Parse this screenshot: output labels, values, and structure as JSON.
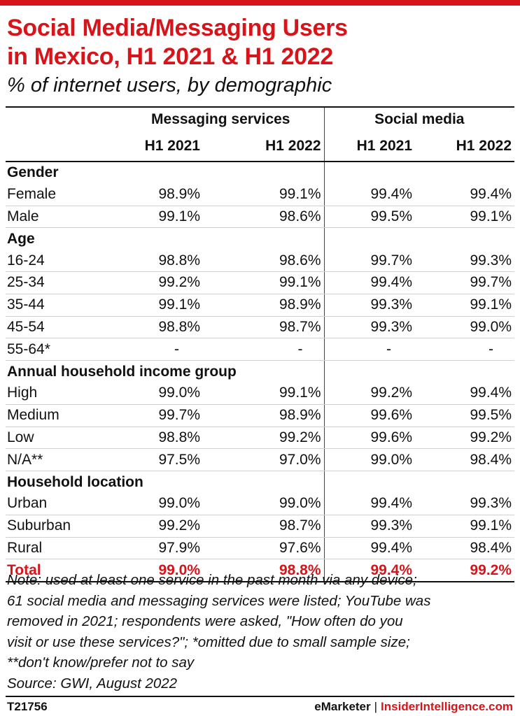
{
  "title_line1": "Social Media/Messaging Users",
  "title_line2": "in Mexico, H1 2021 & H1 2022",
  "subtitle": "% of internet users, by demographic",
  "chart_data": {
    "type": "table",
    "column_groups": [
      "Messaging services",
      "Social media"
    ],
    "periods": [
      "H1 2021",
      "H1 2022",
      "H1 2021",
      "H1 2022"
    ],
    "rows": [
      {
        "kind": "section",
        "label": "Gender"
      },
      {
        "kind": "row",
        "label": "Female",
        "values": [
          "98.9%",
          "99.1%",
          "99.4%",
          "99.4%"
        ]
      },
      {
        "kind": "row",
        "label": "Male",
        "values": [
          "99.1%",
          "98.6%",
          "99.5%",
          "99.1%"
        ]
      },
      {
        "kind": "section",
        "label": "Age"
      },
      {
        "kind": "row",
        "label": "16-24",
        "values": [
          "98.8%",
          "98.6%",
          "99.7%",
          "99.3%"
        ]
      },
      {
        "kind": "row",
        "label": "25-34",
        "values": [
          "99.2%",
          "99.1%",
          "99.4%",
          "99.7%"
        ]
      },
      {
        "kind": "row",
        "label": "35-44",
        "values": [
          "99.1%",
          "98.9%",
          "99.3%",
          "99.1%"
        ]
      },
      {
        "kind": "row",
        "label": "45-54",
        "values": [
          "98.8%",
          "98.7%",
          "99.3%",
          "99.0%"
        ]
      },
      {
        "kind": "row",
        "label": "55-64*",
        "values": [
          "-",
          "-",
          "-",
          "-"
        ]
      },
      {
        "kind": "section",
        "label": "Annual household income group"
      },
      {
        "kind": "row",
        "label": "High",
        "values": [
          "99.0%",
          "99.1%",
          "99.2%",
          "99.4%"
        ]
      },
      {
        "kind": "row",
        "label": "Medium",
        "values": [
          "99.7%",
          "98.9%",
          "99.6%",
          "99.5%"
        ]
      },
      {
        "kind": "row",
        "label": "Low",
        "values": [
          "98.8%",
          "99.2%",
          "99.6%",
          "99.2%"
        ]
      },
      {
        "kind": "row",
        "label": "N/A**",
        "values": [
          "97.5%",
          "97.0%",
          "99.0%",
          "98.4%"
        ]
      },
      {
        "kind": "section",
        "label": "Household location"
      },
      {
        "kind": "row",
        "label": "Urban",
        "values": [
          "99.0%",
          "99.0%",
          "99.4%",
          "99.3%"
        ]
      },
      {
        "kind": "row",
        "label": "Suburban",
        "values": [
          "99.2%",
          "98.7%",
          "99.3%",
          "99.1%"
        ]
      },
      {
        "kind": "row",
        "label": "Rural",
        "values": [
          "97.9%",
          "97.6%",
          "99.4%",
          "98.4%"
        ]
      },
      {
        "kind": "total",
        "label": "Total",
        "values": [
          "99.0%",
          "98.8%",
          "99.4%",
          "99.2%"
        ]
      }
    ]
  },
  "note_lines": [
    "Note: used at least one service in the past month via any device;",
    "61 social media and messaging services were listed; YouTube was",
    "removed in 2021; respondents were asked, \"How often do you",
    "visit or use these services?\"; *omitted due to small sample size;",
    "**don't know/prefer not to say",
    "Source: GWI, August 2022"
  ],
  "footer": {
    "chart_id": "T21756",
    "brand": "eMarketer",
    "separator": "|",
    "brand2": "InsiderIntelligence.com"
  },
  "colors": {
    "accent": "#d7141a",
    "text": "#111111"
  }
}
